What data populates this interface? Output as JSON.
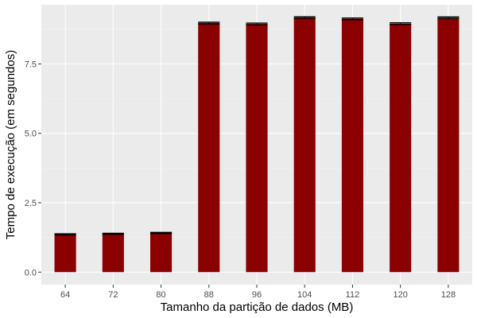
{
  "colors": {
    "panel_background": "#ebebeb",
    "grid_major": "#ffffff",
    "grid_minor": "#f4f4f4",
    "bar_fill": "#8b0000",
    "error_bar": "#000000",
    "tick_mark": "#333333"
  },
  "chart_data": {
    "type": "bar",
    "title": "",
    "xlabel": "Tamanho da partição de dados (MB)",
    "ylabel": "Tempo de execução (em segundos)",
    "categories": [
      "64",
      "72",
      "80",
      "88",
      "96",
      "104",
      "112",
      "120",
      "128"
    ],
    "values": [
      1.36,
      1.38,
      1.41,
      8.97,
      8.94,
      9.17,
      9.12,
      8.95,
      9.16
    ],
    "error": [
      0.02,
      0.02,
      0.02,
      0.03,
      0.03,
      0.03,
      0.03,
      0.03,
      0.03
    ],
    "ylim": [
      -0.45,
      9.63
    ],
    "yticks": [
      0.0,
      2.5,
      5.0,
      7.5
    ],
    "ytick_labels": [
      "0.0",
      "2.5",
      "5.0",
      "7.5"
    ],
    "grid": true,
    "legend": "none"
  }
}
